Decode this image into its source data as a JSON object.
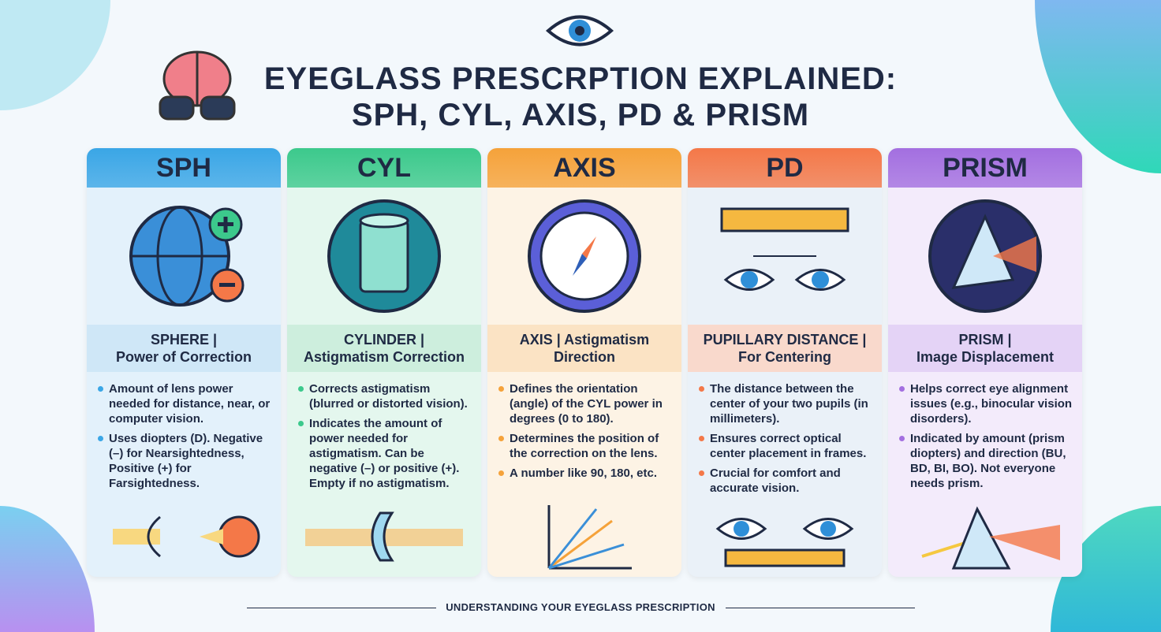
{
  "title": {
    "line1": "EYEGLASS PRESCRPTION EXPLAINED:",
    "line2": "SPH, CYL, AXIS, PD & PRISM"
  },
  "cards": [
    {
      "header": "SPH",
      "sub1": "SPHERE |",
      "sub2": "Power of Correction",
      "color": "#3aa6e6",
      "tint": "#e3f1fb",
      "band": "#cfe7f7",
      "icon": "globe-plus-minus-icon",
      "illustration": "eye-focus-icon",
      "bullets": [
        "Amount of lens power needed for distance, near, or computer vision.",
        "Uses diopters (D). Negative (–) for Nearsightedness, Positive (+) for Farsightedness."
      ]
    },
    {
      "header": "CYL",
      "sub1": "CYLINDER |",
      "sub2": "Astigmatism Correction",
      "color": "#3cc98c",
      "tint": "#e4f7ee",
      "band": "#cdeedd",
      "icon": "cylinder-icon",
      "illustration": "lens-beam-icon",
      "bullets": [
        "Corrects astigmatism (blurred or distorted vision).",
        "Indicates the amount of power needed for astigmatism. Can be negative (–) or positive (+). Empty if no astigmatism."
      ]
    },
    {
      "header": "AXIS",
      "sub1": "AXIS | Astigmatism",
      "sub2": "Direction",
      "color": "#f5a23a",
      "tint": "#fdf3e5",
      "band": "#fbe3c4",
      "icon": "compass-icon",
      "illustration": "angle-arrows-icon",
      "bullets": [
        "Defines the orientation (angle) of the CYL power in degrees (0 to 180).",
        "Determines the position of the correction on the lens.",
        "A number like 90, 180, etc."
      ]
    },
    {
      "header": "PD",
      "sub1": "PUPILLARY DISTANCE |",
      "sub2": "For Centering",
      "color": "#f47848",
      "tint": "#eaf1f8",
      "band": "#f9d9cc",
      "icon": "ruler-eyes-icon",
      "illustration": "eyes-ruler-icon",
      "bullets": [
        "The distance between the center of your two pupils (in millimeters).",
        "Ensures correct optical center placement in frames.",
        "Crucial for comfort and accurate vision."
      ]
    },
    {
      "header": "PRISM",
      "sub1": "PRISM |",
      "sub2": "Image Displacement",
      "color": "#a36fe0",
      "tint": "#f3ebfb",
      "band": "#e4d3f6",
      "icon": "prism-icon",
      "illustration": "prism-rainbow-icon",
      "bullets": [
        "Helps correct eye alignment issues (e.g., binocular vision disorders).",
        "Indicated by amount (prism diopters) and direction (BU, BD, BI, BO). Not everyone needs prism."
      ]
    }
  ],
  "footer": "UNDERSTANDING YOUR EYEGLASS PRESCRIPTION"
}
